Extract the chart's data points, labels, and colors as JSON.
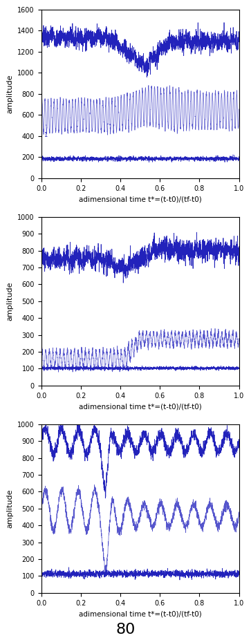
{
  "n_points": 2000,
  "xlabel": "adimensional time t*=(t-t0)/(tf-t0)",
  "ylabel": "amplitude",
  "footer_label": "80",
  "line_color": "#2222bb",
  "line_color_light": "#5555cc",
  "subplot1": {
    "ylim": [
      0,
      1600
    ],
    "yticks": [
      0,
      200,
      400,
      600,
      800,
      1000,
      1200,
      1400,
      1600
    ]
  },
  "subplot2": {
    "ylim": [
      0,
      1000
    ],
    "yticks": [
      0,
      100,
      200,
      300,
      400,
      500,
      600,
      700,
      800,
      900,
      1000
    ]
  },
  "subplot3": {
    "ylim": [
      0,
      1000
    ],
    "yticks": [
      0,
      100,
      200,
      300,
      400,
      500,
      600,
      700,
      800,
      900,
      1000
    ]
  }
}
